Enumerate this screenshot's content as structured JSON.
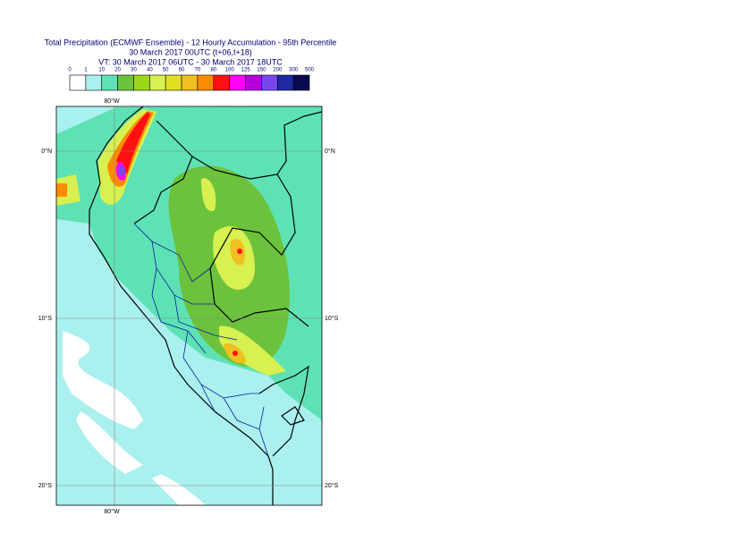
{
  "header": {
    "title": "Total Precipitation (ECMWF Ensemble) - 12 Hourly Accumulation - 95th Percentile",
    "subtitle": "30 March 2017 00UTC (t+06,t+18)",
    "valid_time": "VT: 30 March 2017 06UTC - 30 March 2017 18UTC"
  },
  "legend": {
    "labels": [
      "0",
      "1",
      "10",
      "20",
      "30",
      "40",
      "50",
      "60",
      "70",
      "80",
      "100",
      "125",
      "150",
      "200",
      "300",
      "500"
    ],
    "colors": [
      "#ffffff",
      "#aaf0ee",
      "#5ee2b4",
      "#6cc23c",
      "#9cd81a",
      "#d8f050",
      "#e0e020",
      "#f0c020",
      "#ff8c00",
      "#ff1010",
      "#ff00ff",
      "#b400dc",
      "#7846f0",
      "#1e28a0",
      "#0a0a50"
    ]
  },
  "map": {
    "lon_top": "80°W",
    "lon_bottom": "80°W",
    "lat_left": [
      "0°N",
      "10°S",
      "20°S"
    ],
    "lat_right": [
      "0°N",
      "10°S",
      "20°S"
    ]
  }
}
